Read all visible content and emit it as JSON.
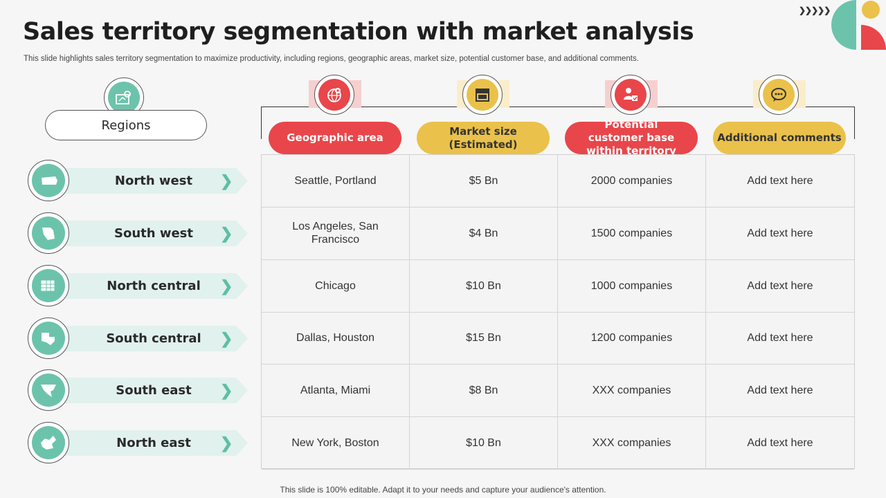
{
  "title": "Sales territory segmentation with market analysis",
  "subtitle": "This slide highlights sales territory segmentation to maximize productivity, including regions, geographic areas, market size, potential customer base, and additional comments.",
  "footer": "This slide is 100% editable. Adapt it to your needs and capture your audience's attention.",
  "decoration": {
    "chevrons": "❯❯❯❯❯"
  },
  "colors": {
    "teal": "#6cc3ab",
    "red": "#e8464a",
    "yellow": "#eac14a",
    "teal_light": "#e1f1ed"
  },
  "regions_header": {
    "label": "Regions",
    "icon": "map-pin-icon"
  },
  "regions": [
    {
      "label": "North west",
      "icon": "northwest-map-icon"
    },
    {
      "label": "South west",
      "icon": "southwest-map-icon"
    },
    {
      "label": "North central",
      "icon": "northcentral-map-icon"
    },
    {
      "label": "South central",
      "icon": "southcentral-map-icon"
    },
    {
      "label": "South east",
      "icon": "southeast-map-icon"
    },
    {
      "label": "North east",
      "icon": "northeast-map-icon"
    }
  ],
  "columns": [
    {
      "label": "Geographic area",
      "icon": "globe-pin-icon",
      "color": "red"
    },
    {
      "label": "Market size\n(Estimated)",
      "icon": "storefront-icon",
      "color": "yellow"
    },
    {
      "label": "Potential customer base within territory",
      "icon": "customer-icon",
      "color": "red"
    },
    {
      "label": "Additional comments",
      "icon": "chat-bubble-icon",
      "color": "yellow"
    }
  ],
  "rows": [
    [
      "Seattle, Portland",
      "$5 Bn",
      "2000 companies",
      "Add text here"
    ],
    [
      "Los Angeles, San Francisco",
      "$4 Bn",
      "1500 companies",
      "Add text here"
    ],
    [
      "Chicago",
      "$10 Bn",
      "1000 companies",
      "Add text here"
    ],
    [
      "Dallas, Houston",
      "$15 Bn",
      "1200 companies",
      "Add text here"
    ],
    [
      "Atlanta, Miami",
      "$8 Bn",
      "XXX companies",
      "Add text here"
    ],
    [
      "New York, Boston",
      "$10 Bn",
      "XXX companies",
      "Add text here"
    ]
  ]
}
